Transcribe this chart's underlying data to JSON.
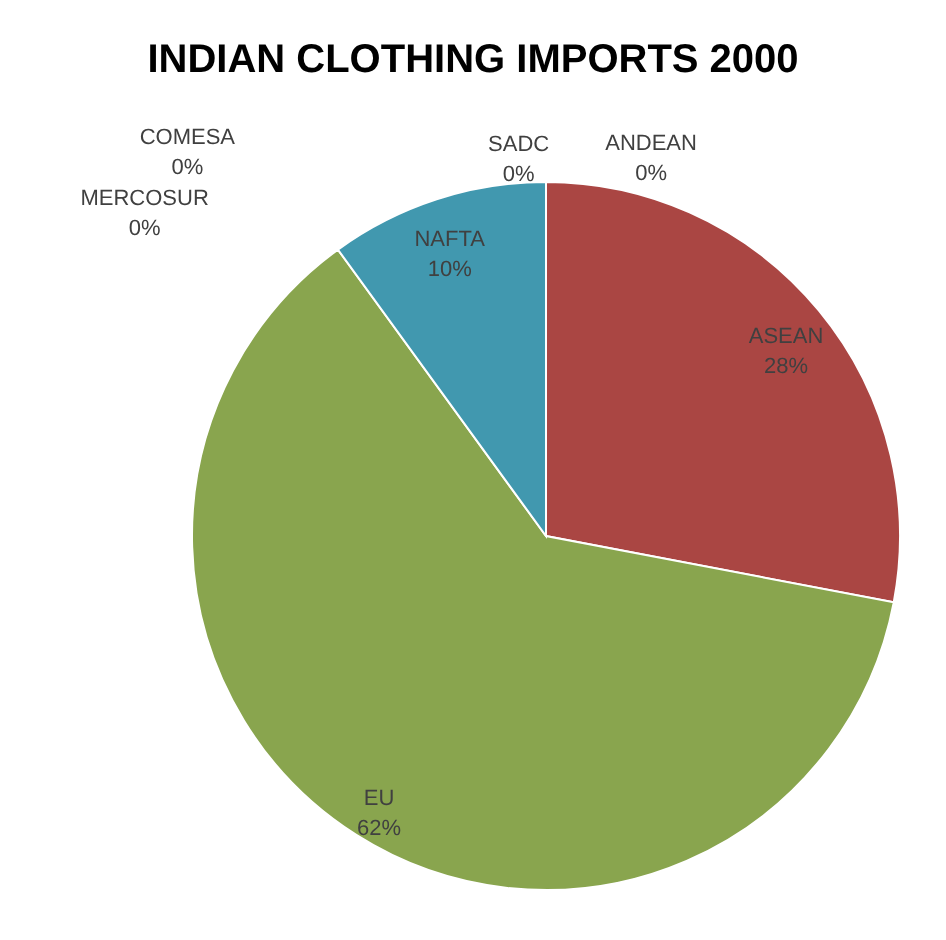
{
  "chart_data": {
    "type": "pie",
    "title": "INDIAN CLOTHING IMPORTS 2000",
    "categories": [
      "ASEAN",
      "EU",
      "NAFTA",
      "MERCOSUR",
      "COMESA",
      "SADC",
      "ANDEAN"
    ],
    "values": [
      28,
      62,
      10,
      0,
      0,
      0,
      0
    ],
    "value_labels": [
      "28%",
      "62%",
      "10%",
      "0%",
      "0%",
      "0%",
      "0%"
    ],
    "colors": [
      "#aa4643",
      "#89a54e",
      "#4198af",
      "#7d5fa0",
      "#db843d",
      "#93a9cf",
      "#d19392"
    ]
  }
}
